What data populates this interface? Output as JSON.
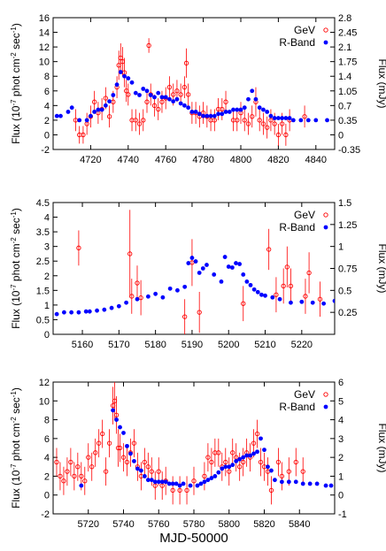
{
  "colors": {
    "gev": "#ff0000",
    "rband": "#0000ff",
    "axis": "#000000"
  },
  "figure": {
    "xlabel": "MJD-50000"
  },
  "chart_data": [
    {
      "type": "scatter",
      "title": "",
      "ylabel_left": "Flux (10^-7 phot cm^-2 sec^-1)",
      "ylabel_right": "Flux (mJy)",
      "xlim": [
        4700,
        4850
      ],
      "ylim_left": [
        -2,
        16
      ],
      "ylim_right": [
        -0.35,
        2.8
      ],
      "xticks": [
        4720,
        4740,
        4760,
        4780,
        4800,
        4820,
        4840
      ],
      "yticks_left": [
        -2,
        0,
        2,
        4,
        6,
        8,
        10,
        12,
        14,
        16
      ],
      "yticks_right": [
        -0.35,
        0,
        0.35,
        0.7,
        1.05,
        1.4,
        1.75,
        2.1,
        2.45,
        2.8
      ],
      "yticks_right_labels": [
        "-0.35",
        "0",
        "0.35",
        "0.7",
        "1.05",
        "1.4",
        "1.75",
        "2.1",
        "2.45",
        "2.8"
      ],
      "legend_position": "top-right",
      "series": [
        {
          "name": "GeV",
          "marker": "open-circle",
          "color": "#ff0000",
          "axis": "left",
          "x": [
            4712,
            4714,
            4716,
            4718,
            4720,
            4722,
            4724,
            4726,
            4728,
            4730,
            4732,
            4734,
            4735,
            4736,
            4737,
            4738,
            4739,
            4740,
            4742,
            4744,
            4746,
            4748,
            4750,
            4751,
            4752,
            4754,
            4756,
            4758,
            4760,
            4762,
            4764,
            4766,
            4768,
            4770,
            4771,
            4772,
            4774,
            4776,
            4778,
            4780,
            4782,
            4784,
            4786,
            4788,
            4790,
            4792,
            4796,
            4798,
            4800,
            4802,
            4804,
            4806,
            4808,
            4810,
            4812,
            4814,
            4816,
            4818,
            4820,
            4822,
            4824,
            4826,
            4834
          ],
          "y": [
            2.0,
            0.0,
            0.0,
            1.5,
            2.5,
            4.5,
            3.0,
            3.5,
            5.0,
            2.5,
            4.5,
            6.5,
            9.5,
            10.5,
            10.0,
            8.5,
            6.0,
            5.5,
            2.0,
            2.0,
            1.5,
            2.0,
            4.5,
            12.2,
            5.5,
            4.0,
            3.5,
            4.5,
            5.0,
            6.5,
            5.5,
            6.0,
            5.5,
            6.5,
            9.8,
            5.5,
            3.0,
            3.0,
            2.5,
            3.0,
            2.5,
            2.0,
            2.0,
            3.5,
            3.5,
            4.5,
            2.0,
            2.0,
            3.0,
            2.0,
            1.5,
            2.5,
            4.5,
            2.0,
            1.5,
            1.0,
            2.0,
            1.5,
            0.0,
            1.5,
            0.0,
            2.0,
            2.5
          ],
          "yerr": [
            1.5,
            1.2,
            1.2,
            1.5,
            1.5,
            1.5,
            1.5,
            1.5,
            1.5,
            1.5,
            1.5,
            1.5,
            2.0,
            2.0,
            2.0,
            2.0,
            1.5,
            1.5,
            1.5,
            1.5,
            1.5,
            1.5,
            1.5,
            1.0,
            1.5,
            1.5,
            1.5,
            1.5,
            1.5,
            1.5,
            1.5,
            1.5,
            1.5,
            1.5,
            2.0,
            1.5,
            1.5,
            1.5,
            1.5,
            1.5,
            1.5,
            1.5,
            1.5,
            1.5,
            1.5,
            1.5,
            1.5,
            1.5,
            1.5,
            1.5,
            1.5,
            1.5,
            2.0,
            1.5,
            1.5,
            1.5,
            1.5,
            1.5,
            1.5,
            1.5,
            1.5,
            1.5,
            1.5
          ]
        },
        {
          "name": "R-Band",
          "marker": "filled-circle",
          "color": "#0000ff",
          "axis": "right",
          "x": [
            4702,
            4704,
            4708,
            4710,
            4714,
            4718,
            4720,
            4722,
            4724,
            4726,
            4728,
            4730,
            4732,
            4734,
            4736,
            4738,
            4740,
            4742,
            4744,
            4746,
            4748,
            4750,
            4752,
            4754,
            4756,
            4758,
            4760,
            4762,
            4764,
            4766,
            4768,
            4770,
            4772,
            4774,
            4776,
            4778,
            4780,
            4782,
            4784,
            4786,
            4788,
            4790,
            4792,
            4794,
            4796,
            4798,
            4800,
            4802,
            4804,
            4806,
            4808,
            4810,
            4812,
            4814,
            4816,
            4818,
            4820,
            4822,
            4824,
            4826,
            4828,
            4832,
            4836,
            4840,
            4846
          ],
          "y": [
            0.45,
            0.45,
            0.55,
            0.65,
            0.35,
            0.35,
            0.45,
            0.55,
            0.6,
            0.6,
            0.7,
            0.8,
            0.95,
            1.2,
            1.5,
            1.4,
            1.35,
            1.25,
            1.0,
            0.95,
            1.1,
            1.05,
            0.95,
            0.9,
            1.0,
            0.9,
            0.9,
            0.85,
            0.8,
            0.85,
            0.75,
            0.7,
            0.65,
            0.55,
            0.55,
            0.5,
            0.45,
            0.45,
            0.45,
            0.45,
            0.5,
            0.5,
            0.55,
            0.55,
            0.6,
            0.6,
            0.6,
            0.65,
            0.85,
            1.05,
            0.85,
            0.65,
            0.6,
            0.55,
            0.45,
            0.4,
            0.4,
            0.4,
            0.4,
            0.4,
            0.35,
            0.35,
            0.35,
            0.35,
            0.35
          ]
        }
      ]
    },
    {
      "type": "scatter",
      "title": "",
      "ylabel_left": "Flux (10^-7 phot cm^-2 sec^-1)",
      "ylabel_right": "Flux (mJy)",
      "xlim": [
        5152,
        5229
      ],
      "ylim_left": [
        0,
        4.5
      ],
      "ylim_right": [
        0,
        1.5
      ],
      "xticks": [
        5160,
        5170,
        5180,
        5190,
        5200,
        5210,
        5220
      ],
      "yticks_left": [
        0,
        0.5,
        1,
        1.5,
        2,
        2.5,
        3,
        3.5,
        4,
        4.5
      ],
      "yticks_right": [
        0.25,
        0.5,
        0.75,
        1,
        1.25,
        1.5
      ],
      "yticks_right_labels": [
        "0.25",
        "0.5",
        "0.75",
        "1",
        "1.25",
        "1.5"
      ],
      "legend_position": "top-right",
      "series": [
        {
          "name": "GeV",
          "marker": "open-circle",
          "color": "#ff0000",
          "axis": "left",
          "x": [
            5159,
            5173,
            5173.5,
            5175,
            5176,
            5188,
            5190,
            5192,
            5204,
            5211,
            5213,
            5215,
            5216,
            5217,
            5221,
            5222,
            5225
          ],
          "y": [
            2.95,
            2.75,
            1.3,
            1.75,
            1.25,
            0.6,
            2.45,
            0.75,
            1.05,
            2.9,
            1.35,
            1.65,
            2.3,
            1.65,
            1.3,
            2.1,
            1.2
          ],
          "yerr": [
            0.6,
            1.5,
            0.6,
            0.6,
            0.6,
            0.6,
            0.8,
            0.7,
            0.6,
            0.7,
            0.6,
            0.6,
            0.7,
            0.6,
            0.6,
            0.7,
            0.6
          ]
        },
        {
          "name": "R-Band",
          "marker": "filled-circle",
          "color": "#0000ff",
          "axis": "right",
          "x": [
            5153,
            5155,
            5157,
            5159,
            5161,
            5162,
            5164,
            5166,
            5168,
            5170,
            5172,
            5175,
            5178,
            5180,
            5182,
            5184,
            5186,
            5188,
            5189,
            5190,
            5191,
            5192,
            5193,
            5194,
            5196,
            5198,
            5199,
            5200,
            5201,
            5202,
            5203,
            5204,
            5205,
            5206,
            5207,
            5208,
            5209,
            5210,
            5212,
            5214,
            5217,
            5220,
            5223,
            5226,
            5229
          ],
          "y": [
            0.23,
            0.25,
            0.25,
            0.25,
            0.26,
            0.26,
            0.27,
            0.28,
            0.3,
            0.32,
            0.36,
            0.4,
            0.43,
            0.46,
            0.42,
            0.52,
            0.5,
            0.54,
            0.81,
            0.87,
            0.83,
            0.7,
            0.75,
            0.79,
            0.68,
            0.6,
            0.88,
            0.77,
            0.76,
            0.81,
            0.8,
            0.68,
            0.6,
            0.56,
            0.51,
            0.48,
            0.45,
            0.44,
            0.42,
            0.4,
            0.36,
            0.37,
            0.36,
            0.35,
            0.38
          ]
        }
      ]
    },
    {
      "type": "scatter",
      "title": "",
      "ylabel_left": "Flux (10^-7 phot cm^-2 sec^-1)",
      "ylabel_right": "Flux (mJy)",
      "xlim": [
        5700,
        5860
      ],
      "ylim_left": [
        -2,
        12
      ],
      "ylim_right": [
        -1,
        6
      ],
      "xticks": [
        5720,
        5740,
        5760,
        5780,
        5800,
        5820,
        5840
      ],
      "yticks_left": [
        -2,
        0,
        2,
        4,
        6,
        8,
        10,
        12
      ],
      "yticks_right": [
        -1,
        0,
        1,
        2,
        3,
        4,
        5,
        6
      ],
      "yticks_right_labels": [
        "-1",
        "0",
        "1",
        "2",
        "3",
        "4",
        "5",
        "6"
      ],
      "legend_position": "top-right",
      "series": [
        {
          "name": "GeV",
          "marker": "open-circle",
          "color": "#ff0000",
          "axis": "left",
          "x": [
            5702,
            5704,
            5706,
            5708,
            5710,
            5712,
            5714,
            5716,
            5718,
            5720,
            5722,
            5724,
            5726,
            5728,
            5730,
            5732,
            5734,
            5735,
            5736,
            5737,
            5738,
            5740,
            5742,
            5744,
            5746,
            5748,
            5750,
            5752,
            5754,
            5756,
            5758,
            5760,
            5762,
            5764,
            5768,
            5772,
            5776,
            5780,
            5786,
            5788,
            5790,
            5792,
            5794,
            5796,
            5798,
            5800,
            5802,
            5804,
            5806,
            5808,
            5810,
            5812,
            5814,
            5816,
            5818,
            5820,
            5822,
            5824,
            5828,
            5830,
            5834,
            5838,
            5842
          ],
          "y": [
            3.5,
            2.0,
            1.5,
            2.5,
            3.5,
            2.0,
            3.0,
            2.0,
            1.5,
            4.0,
            3.0,
            4.5,
            5.5,
            6.5,
            2.5,
            5.5,
            9.5,
            10.0,
            8.5,
            5.0,
            5.0,
            4.0,
            3.5,
            4.5,
            5.5,
            3.0,
            2.0,
            3.5,
            3.0,
            2.5,
            1.0,
            2.5,
            1.0,
            1.5,
            0.5,
            0.5,
            0.5,
            1.5,
            2.0,
            4.0,
            3.5,
            4.5,
            4.5,
            3.0,
            3.5,
            2.5,
            4.5,
            4.0,
            3.0,
            3.5,
            4.5,
            4.0,
            5.5,
            6.5,
            3.5,
            3.0,
            2.5,
            0.5,
            3.5,
            2.0,
            2.5,
            3.5,
            2.5
          ],
          "yerr": [
            1.5,
            1.5,
            1.5,
            1.5,
            1.5,
            1.5,
            1.5,
            1.5,
            1.5,
            1.5,
            1.5,
            1.5,
            1.5,
            1.5,
            1.5,
            1.5,
            2.0,
            2.0,
            2.0,
            2.0,
            1.5,
            1.5,
            1.5,
            1.5,
            1.5,
            1.5,
            1.5,
            1.5,
            1.5,
            1.5,
            1.5,
            1.5,
            1.5,
            1.5,
            1.5,
            1.5,
            1.5,
            1.5,
            1.5,
            1.5,
            1.5,
            1.5,
            1.5,
            1.5,
            1.5,
            1.5,
            1.5,
            1.5,
            1.5,
            1.5,
            1.5,
            1.5,
            1.5,
            1.5,
            1.5,
            1.5,
            1.5,
            1.5,
            1.5,
            1.5,
            1.5,
            1.5,
            1.5
          ]
        },
        {
          "name": "R-Band",
          "marker": "filled-circle",
          "color": "#0000ff",
          "axis": "right",
          "x": [
            5716,
            5734,
            5736,
            5738,
            5740,
            5742,
            5744,
            5746,
            5748,
            5750,
            5752,
            5754,
            5756,
            5758,
            5760,
            5762,
            5764,
            5766,
            5768,
            5770,
            5772,
            5774,
            5778,
            5782,
            5784,
            5786,
            5788,
            5790,
            5792,
            5794,
            5796,
            5798,
            5800,
            5802,
            5804,
            5806,
            5808,
            5810,
            5812,
            5814,
            5816,
            5818,
            5820,
            5822,
            5824,
            5826,
            5830,
            5834,
            5838,
            5842,
            5846,
            5850,
            5855,
            5858
          ],
          "y": [
            0.5,
            4.5,
            4.0,
            3.6,
            3.3,
            2.6,
            2.2,
            1.8,
            1.4,
            1.3,
            1.0,
            0.8,
            0.8,
            0.7,
            0.7,
            0.7,
            0.7,
            0.6,
            0.6,
            0.6,
            0.5,
            0.6,
            0.5,
            0.5,
            0.6,
            0.7,
            0.8,
            0.9,
            1.0,
            1.2,
            1.4,
            1.5,
            1.5,
            1.6,
            1.8,
            1.9,
            2.0,
            2.1,
            2.1,
            2.2,
            2.3,
            3.0,
            2.4,
            1.5,
            1.3,
            0.8,
            0.7,
            0.7,
            0.7,
            0.6,
            0.6,
            0.6,
            0.5,
            0.5
          ]
        }
      ]
    }
  ]
}
